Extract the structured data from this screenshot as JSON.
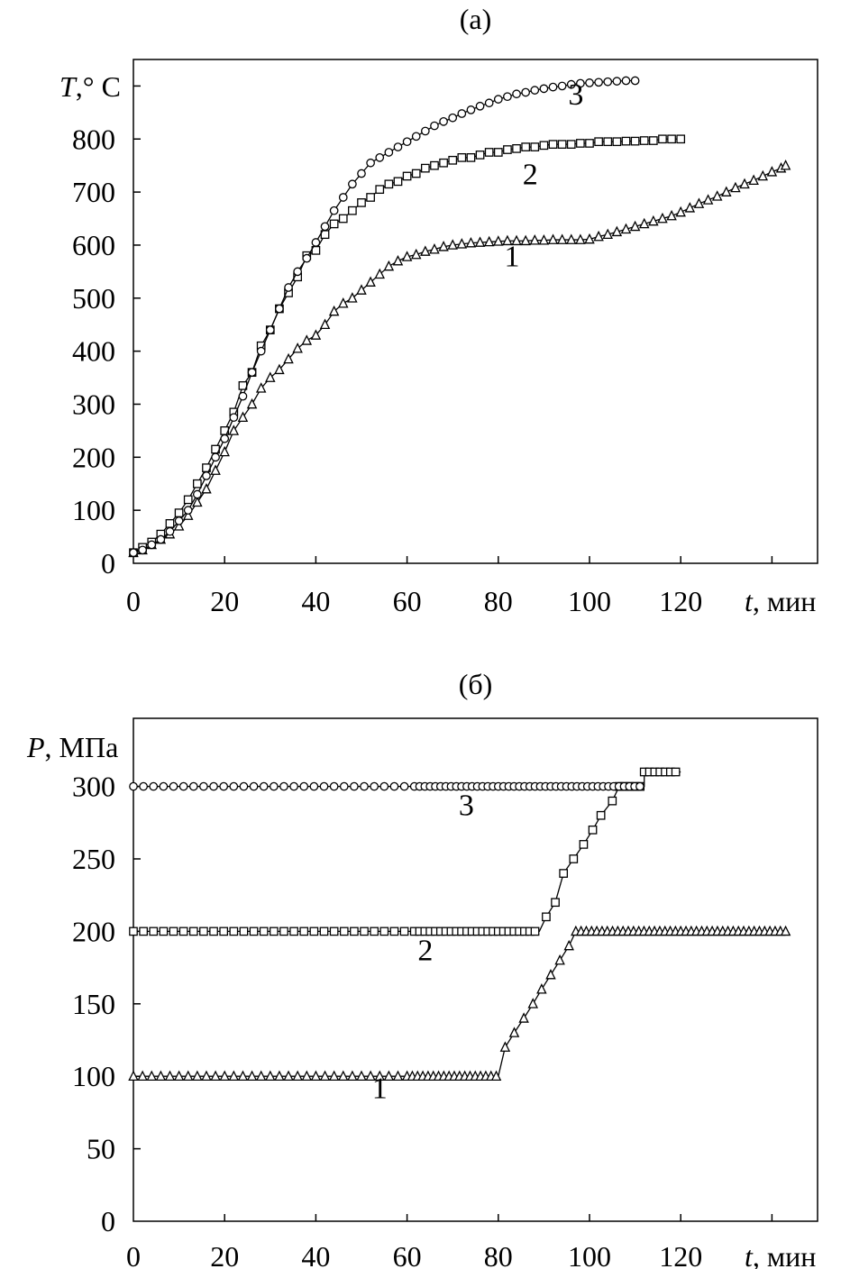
{
  "chart_data": [
    {
      "type": "line",
      "title": "(a)",
      "ylabel_var": "T",
      "ylabel_unit": ",° C",
      "xlabel_var": "t",
      "xlabel_unit": ", мин",
      "xlim": [
        0,
        150
      ],
      "ylim": [
        0,
        950
      ],
      "xticks": [
        0,
        20,
        40,
        60,
        80,
        100,
        120,
        140
      ],
      "xtick_labels": [
        "0",
        "20",
        "40",
        "60",
        "80",
        "100",
        "120",
        ""
      ],
      "yticks": [
        0,
        100,
        200,
        300,
        400,
        500,
        600,
        700,
        800,
        900
      ],
      "ytick_labels": [
        "0",
        "100",
        "200",
        "300",
        "400",
        "500",
        "600",
        "700",
        "800",
        ""
      ],
      "grid": false,
      "series": [
        {
          "name": "1",
          "marker": "triangle",
          "label_at": [
            83,
            560
          ],
          "points": [
            [
              0,
              20
            ],
            [
              2,
              25
            ],
            [
              4,
              35
            ],
            [
              6,
              45
            ],
            [
              8,
              55
            ],
            [
              10,
              70
            ],
            [
              12,
              90
            ],
            [
              14,
              115
            ],
            [
              16,
              140
            ],
            [
              18,
              175
            ],
            [
              20,
              210
            ],
            [
              22,
              250
            ],
            [
              24,
              275
            ],
            [
              26,
              300
            ],
            [
              28,
              330
            ],
            [
              30,
              350
            ],
            [
              32,
              365
            ],
            [
              34,
              385
            ],
            [
              36,
              405
            ],
            [
              38,
              420
            ],
            [
              40,
              430
            ],
            [
              42,
              450
            ],
            [
              44,
              475
            ],
            [
              46,
              490
            ],
            [
              48,
              500
            ],
            [
              50,
              515
            ],
            [
              52,
              530
            ],
            [
              54,
              545
            ],
            [
              56,
              560
            ],
            [
              58,
              570
            ],
            [
              60,
              578
            ],
            [
              62,
              582
            ],
            [
              64,
              588
            ],
            [
              66,
              592
            ],
            [
              68,
              597
            ],
            [
              70,
              600
            ],
            [
              72,
              602
            ],
            [
              74,
              604
            ],
            [
              76,
              605
            ],
            [
              78,
              606
            ],
            [
              80,
              607
            ],
            [
              82,
              608
            ],
            [
              84,
              608
            ],
            [
              86,
              608
            ],
            [
              88,
              609
            ],
            [
              90,
              609
            ],
            [
              92,
              610
            ],
            [
              94,
              610
            ],
            [
              96,
              610
            ],
            [
              98,
              610
            ],
            [
              100,
              611
            ],
            [
              102,
              616
            ],
            [
              104,
              620
            ],
            [
              106,
              625
            ],
            [
              108,
              630
            ],
            [
              110,
              635
            ],
            [
              112,
              640
            ],
            [
              114,
              645
            ],
            [
              116,
              650
            ],
            [
              118,
              655
            ],
            [
              120,
              662
            ],
            [
              122,
              670
            ],
            [
              124,
              678
            ],
            [
              126,
              685
            ],
            [
              128,
              692
            ],
            [
              130,
              700
            ],
            [
              132,
              708
            ],
            [
              134,
              715
            ],
            [
              136,
              722
            ],
            [
              138,
              730
            ],
            [
              140,
              738
            ],
            [
              142,
              745
            ],
            [
              143,
              750
            ]
          ]
        },
        {
          "name": "2",
          "marker": "square",
          "label_at": [
            87,
            715
          ],
          "points": [
            [
              0,
              20
            ],
            [
              2,
              30
            ],
            [
              4,
              40
            ],
            [
              6,
              55
            ],
            [
              8,
              75
            ],
            [
              10,
              95
            ],
            [
              12,
              120
            ],
            [
              14,
              150
            ],
            [
              16,
              180
            ],
            [
              18,
              215
            ],
            [
              20,
              250
            ],
            [
              22,
              285
            ],
            [
              24,
              335
            ],
            [
              26,
              360
            ],
            [
              28,
              410
            ],
            [
              30,
              440
            ],
            [
              32,
              480
            ],
            [
              34,
              510
            ],
            [
              36,
              540
            ],
            [
              38,
              580
            ],
            [
              40,
              590
            ],
            [
              42,
              620
            ],
            [
              44,
              640
            ],
            [
              46,
              650
            ],
            [
              48,
              665
            ],
            [
              50,
              680
            ],
            [
              52,
              690
            ],
            [
              54,
              705
            ],
            [
              56,
              715
            ],
            [
              58,
              720
            ],
            [
              60,
              730
            ],
            [
              62,
              735
            ],
            [
              64,
              745
            ],
            [
              66,
              750
            ],
            [
              68,
              755
            ],
            [
              70,
              760
            ],
            [
              72,
              765
            ],
            [
              74,
              765
            ],
            [
              76,
              770
            ],
            [
              78,
              775
            ],
            [
              80,
              775
            ],
            [
              82,
              780
            ],
            [
              84,
              782
            ],
            [
              86,
              785
            ],
            [
              88,
              785
            ],
            [
              90,
              788
            ],
            [
              92,
              790
            ],
            [
              94,
              790
            ],
            [
              96,
              790
            ],
            [
              98,
              792
            ],
            [
              100,
              792
            ],
            [
              102,
              795
            ],
            [
              104,
              795
            ],
            [
              106,
              795
            ],
            [
              108,
              796
            ],
            [
              110,
              796
            ],
            [
              112,
              797
            ],
            [
              114,
              797
            ],
            [
              116,
              800
            ],
            [
              118,
              800
            ],
            [
              120,
              800
            ]
          ]
        },
        {
          "name": "3",
          "marker": "circle",
          "label_at": [
            97,
            865
          ],
          "points": [
            [
              0,
              20
            ],
            [
              2,
              25
            ],
            [
              4,
              35
            ],
            [
              6,
              45
            ],
            [
              8,
              60
            ],
            [
              10,
              80
            ],
            [
              12,
              100
            ],
            [
              14,
              130
            ],
            [
              16,
              165
            ],
            [
              18,
              200
            ],
            [
              20,
              235
            ],
            [
              22,
              275
            ],
            [
              24,
              315
            ],
            [
              26,
              360
            ],
            [
              28,
              400
            ],
            [
              30,
              440
            ],
            [
              32,
              480
            ],
            [
              34,
              520
            ],
            [
              36,
              550
            ],
            [
              38,
              575
            ],
            [
              40,
              605
            ],
            [
              42,
              635
            ],
            [
              44,
              665
            ],
            [
              46,
              690
            ],
            [
              48,
              715
            ],
            [
              50,
              735
            ],
            [
              52,
              755
            ],
            [
              54,
              765
            ],
            [
              56,
              775
            ],
            [
              58,
              785
            ],
            [
              60,
              795
            ],
            [
              62,
              805
            ],
            [
              64,
              815
            ],
            [
              66,
              825
            ],
            [
              68,
              833
            ],
            [
              70,
              840
            ],
            [
              72,
              848
            ],
            [
              74,
              855
            ],
            [
              76,
              862
            ],
            [
              78,
              868
            ],
            [
              80,
              875
            ],
            [
              82,
              880
            ],
            [
              84,
              885
            ],
            [
              86,
              888
            ],
            [
              88,
              892
            ],
            [
              90,
              895
            ],
            [
              92,
              898
            ],
            [
              94,
              900
            ],
            [
              96,
              903
            ],
            [
              98,
              905
            ],
            [
              100,
              906
            ],
            [
              102,
              907
            ],
            [
              104,
              908
            ],
            [
              106,
              909
            ],
            [
              108,
              910
            ],
            [
              110,
              910
            ]
          ]
        }
      ]
    },
    {
      "type": "line",
      "title": "(б)",
      "ylabel_var": "P",
      "ylabel_unit": ", МПа",
      "xlabel_var": "t",
      "xlabel_unit": ", мин",
      "xlim": [
        0,
        150
      ],
      "ylim": [
        0,
        347
      ],
      "xticks": [
        0,
        20,
        40,
        60,
        80,
        100,
        120,
        140
      ],
      "xtick_labels": [
        "0",
        "20",
        "40",
        "60",
        "80",
        "100",
        "120",
        ""
      ],
      "yticks": [
        0,
        50,
        100,
        150,
        200,
        250,
        300
      ],
      "ytick_labels": [
        "0",
        "50",
        "100",
        "150",
        "200",
        "250",
        "300"
      ],
      "grid": false,
      "series": [
        {
          "name": "1",
          "marker": "triangle",
          "label_at": [
            54,
            85
          ],
          "plateaus": [
            [
              0,
              80,
              100
            ],
            [
              97,
              143,
              200
            ]
          ],
          "points": [
            [
              81.5,
              120
            ],
            [
              83.5,
              130
            ],
            [
              85.6,
              140
            ],
            [
              87.6,
              150
            ],
            [
              89.5,
              160
            ],
            [
              91.5,
              170
            ],
            [
              93.5,
              180
            ],
            [
              95.5,
              190
            ]
          ]
        },
        {
          "name": "2",
          "marker": "square",
          "label_at": [
            64,
            180
          ],
          "plateaus": [
            [
              0,
              89,
              200
            ],
            [
              106.5,
              112,
              300
            ],
            [
              112,
              120,
              310
            ]
          ],
          "points": [
            [
              90.5,
              210
            ],
            [
              92.5,
              220
            ],
            [
              94.3,
              240
            ],
            [
              96.5,
              250
            ],
            [
              98.7,
              260
            ],
            [
              100.7,
              270
            ],
            [
              102.5,
              280
            ],
            [
              105,
              290
            ]
          ]
        },
        {
          "name": "3",
          "marker": "circle",
          "label_at": [
            73,
            280
          ],
          "plateaus": [
            [
              0,
              112,
              300
            ]
          ],
          "points": []
        }
      ]
    }
  ]
}
